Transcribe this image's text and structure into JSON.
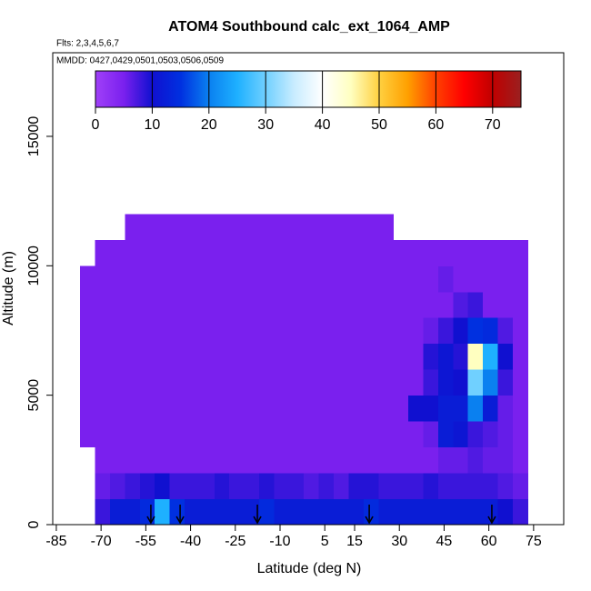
{
  "chart_data": {
    "type": "heatmap",
    "title": "ATOM4 Southbound calc_ext_1064_AMP",
    "subtitle": "Flts: 2,3,4,5,6,7",
    "annotation": "MMDD: 0427,0429,0501,0503,0506,0509",
    "x_label": "Latitude (deg N)",
    "y_label": "Altitude (m)",
    "xlim": [
      -86.2,
      85.1
    ],
    "ylim": [
      0,
      18230
    ],
    "xticks": [
      -85,
      -70,
      -55,
      -40,
      -25,
      -10,
      5,
      15,
      30,
      45,
      60,
      75
    ],
    "yticks": [
      0,
      5000,
      10000,
      15000
    ],
    "x_edges": [
      -77,
      -72,
      -67,
      -62,
      -57,
      -52,
      -47,
      -42,
      -37,
      -32,
      -27,
      -22,
      -17,
      -12,
      -7,
      -2,
      3,
      8,
      13,
      18,
      23,
      28,
      33,
      38,
      43,
      48,
      53,
      58,
      63,
      68,
      73
    ],
    "y_edges": [
      0,
      1000,
      2000,
      3000,
      4000,
      5000,
      6000,
      7000,
      8000,
      9000,
      10000,
      11000,
      12000
    ],
    "values": [
      [
        null,
        8,
        12,
        12,
        14,
        25,
        15,
        12,
        12,
        12,
        12,
        12,
        14,
        12,
        12,
        12,
        12,
        12,
        12,
        14,
        12,
        12,
        12,
        12,
        12,
        12,
        12,
        12,
        10,
        8
      ],
      [
        null,
        6,
        7,
        8,
        9,
        10,
        8,
        8,
        8,
        9,
        8,
        8,
        9,
        8,
        8,
        7,
        8,
        7,
        9,
        9,
        8,
        8,
        8,
        9,
        8,
        8,
        8,
        8,
        7,
        6
      ],
      [
        null,
        5,
        5,
        5,
        5,
        5,
        5,
        5,
        5,
        5,
        5,
        5,
        5,
        5,
        5,
        5,
        5,
        5,
        5,
        5,
        5,
        5,
        5,
        5,
        6,
        6,
        7,
        6,
        6,
        5
      ],
      [
        5,
        5,
        5,
        5,
        5,
        5,
        5,
        5,
        5,
        5,
        5,
        5,
        5,
        5,
        5,
        5,
        5,
        5,
        5,
        5,
        5,
        5,
        5,
        6,
        12,
        11,
        8,
        7,
        6,
        5
      ],
      [
        5,
        5,
        5,
        5,
        5,
        5,
        5,
        5,
        5,
        5,
        5,
        5,
        5,
        5,
        5,
        5,
        5,
        5,
        5,
        5,
        5,
        5,
        10,
        10,
        12,
        12,
        20,
        12,
        6,
        5
      ],
      [
        5,
        5,
        5,
        5,
        5,
        5,
        5,
        5,
        5,
        5,
        5,
        5,
        5,
        5,
        5,
        5,
        5,
        5,
        5,
        5,
        5,
        5,
        5,
        8,
        11,
        10,
        30,
        20,
        8,
        5
      ],
      [
        5,
        5,
        5,
        5,
        5,
        5,
        5,
        5,
        5,
        5,
        5,
        5,
        5,
        5,
        5,
        5,
        5,
        5,
        5,
        5,
        5,
        5,
        5,
        9,
        11,
        9,
        45,
        25,
        10,
        5
      ],
      [
        5,
        5,
        5,
        5,
        5,
        5,
        5,
        5,
        5,
        5,
        5,
        5,
        5,
        5,
        5,
        5,
        5,
        5,
        5,
        5,
        5,
        5,
        5,
        6,
        8,
        10,
        15,
        14,
        7,
        5
      ],
      [
        5,
        5,
        5,
        5,
        5,
        5,
        5,
        5,
        5,
        5,
        5,
        5,
        5,
        5,
        5,
        5,
        5,
        5,
        5,
        5,
        5,
        5,
        5,
        5,
        5,
        7,
        8,
        5,
        5,
        5
      ],
      [
        5,
        5,
        5,
        5,
        5,
        5,
        5,
        5,
        5,
        5,
        5,
        5,
        5,
        5,
        5,
        5,
        5,
        5,
        5,
        5,
        5,
        5,
        5,
        5,
        6,
        5,
        5,
        5,
        5,
        5
      ],
      [
        null,
        5,
        5,
        5,
        5,
        5,
        5,
        5,
        5,
        5,
        5,
        5,
        5,
        5,
        5,
        5,
        5,
        5,
        5,
        5,
        5,
        5,
        5,
        5,
        5,
        5,
        5,
        5,
        5,
        5
      ],
      [
        null,
        null,
        null,
        5,
        5,
        5,
        5,
        5,
        5,
        5,
        5,
        5,
        5,
        5,
        5,
        5,
        5,
        5,
        5,
        5,
        5,
        null,
        null,
        null,
        null,
        null,
        null,
        null,
        null,
        null
      ]
    ],
    "colorbar": {
      "lim": [
        0,
        75
      ],
      "ticks": [
        0,
        10,
        20,
        30,
        40,
        50,
        60,
        70
      ],
      "colors": [
        "#a040f8",
        "#7a20ee",
        "#1010d0",
        "#0030e0",
        "#0a80f0",
        "#1eb0ff",
        "#70d0ff",
        "#c8ecff",
        "#ffffff",
        "#ffffc0",
        "#ffd040",
        "#ffa000",
        "#ff4000",
        "#ff0000",
        "#c00000",
        "#9a2020"
      ]
    },
    "markers_x": [
      -53.3,
      -43.5,
      -17.6,
      19.9,
      61
    ]
  }
}
